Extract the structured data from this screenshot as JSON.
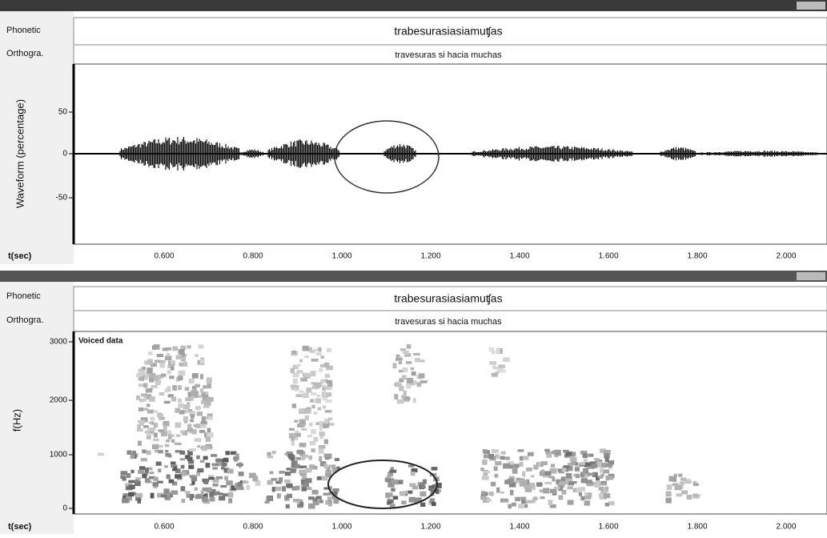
{
  "waveform_panel": {
    "phonetic_label": "Phonetic",
    "phonetic": "trabesurasiasiamuʧas",
    "orthographic_label": "Orthogra.",
    "orthographic": "travesuras si hacia muchas",
    "y_axis_label": "Waveform (percentage)",
    "y_ticks": [
      "50",
      "0",
      "-50"
    ],
    "x_axis_label": "t(sec)",
    "x_ticks": [
      "0.600",
      "0.800",
      "1.000",
      "1.200",
      "1.400",
      "1.600",
      "1.800",
      "2.000"
    ]
  },
  "spectrogram_panel": {
    "phonetic_label": "Phonetic",
    "phonetic": "trabesurasiasiamuʧas",
    "orthographic_label": "Orthogra.",
    "orthographic": "travesuras si hacia muchas",
    "annotation": "Voiced data",
    "y_axis_label": "f(Hz)",
    "y_ticks": [
      "3000",
      "2000",
      "1000",
      "0"
    ],
    "x_axis_label": "t(sec)",
    "x_ticks": [
      "0.600",
      "0.800",
      "1.000",
      "1.200",
      "1.400",
      "1.600",
      "1.800",
      "2.000"
    ]
  }
}
